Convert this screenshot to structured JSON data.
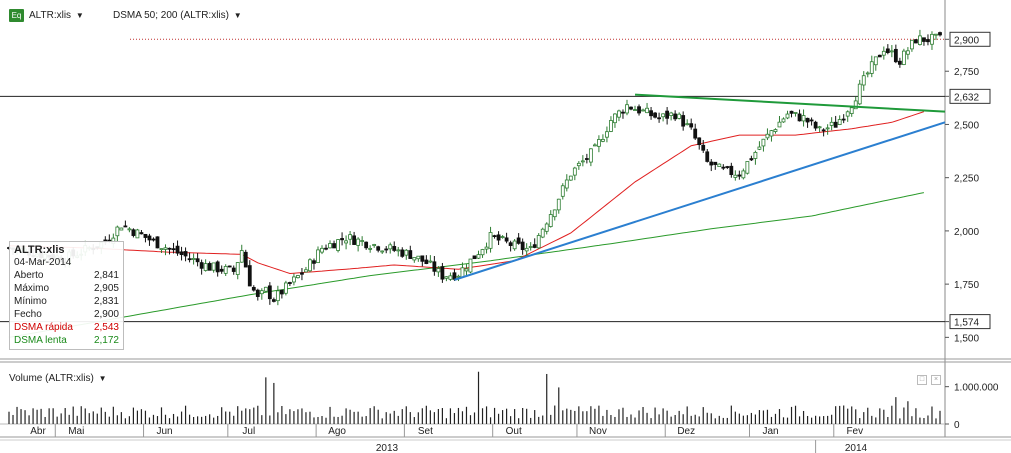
{
  "header": {
    "symbol": "ALTR:xlis",
    "indicator": "DSMA 50; 200 (ALTR:xlis)",
    "eq_label": "Eq",
    "dropdown_icon": "triangle-down-icon"
  },
  "legend": {
    "symbol": "ALTR:xlis",
    "date": "04-Mar-2014",
    "rows": [
      {
        "label": "Aberto",
        "value": "2,841"
      },
      {
        "label": "Máximo",
        "value": "2,905"
      },
      {
        "label": "Mínimo",
        "value": "2,831"
      },
      {
        "label": "Fecho",
        "value": "2,900"
      },
      {
        "label": "DSMA rápida",
        "value": "2,543"
      },
      {
        "label": "DSMA lenta",
        "value": "2,172"
      }
    ]
  },
  "volume": {
    "title": "Volume (ALTR:xlis)",
    "tick_labels": [
      "1.000.000",
      "0"
    ]
  },
  "colors": {
    "up": "#2e7d32",
    "down": "#111111",
    "fast_ma": "#e02020",
    "slow_ma": "#2a9a2a",
    "resistance": "#1f9a3a",
    "support": "#2b7fd0",
    "hline": "#222222"
  },
  "chart_data": {
    "type": "candlestick",
    "y_ticks": [
      "2,900",
      "2,750",
      "2,632",
      "2,500",
      "2,250",
      "2,000",
      "1,750",
      "1,574",
      "1,500"
    ],
    "y_tick_values": [
      2.9,
      2.75,
      2.632,
      2.5,
      2.25,
      2.0,
      1.75,
      1.574,
      1.5
    ],
    "y_highlighted": [
      "2,900",
      "2,632",
      "1,574"
    ],
    "ylim": [
      1.45,
      3.0
    ],
    "x_month_labels": [
      "Abr",
      "Mai",
      "Jun",
      "Jul",
      "Ago",
      "Set",
      "Out",
      "Nov",
      "Dez",
      "Jan",
      "Fev"
    ],
    "x_year_labels": [
      "2013",
      "2014"
    ],
    "horizontal_lines": [
      2.632,
      1.574
    ],
    "keypoints": [
      [
        0,
        1.92
      ],
      [
        14,
        1.87
      ],
      [
        24,
        1.95
      ],
      [
        28,
        2.03
      ],
      [
        36,
        1.95
      ],
      [
        44,
        1.88
      ],
      [
        50,
        1.83
      ],
      [
        56,
        1.81
      ],
      [
        58,
        1.91
      ],
      [
        60,
        1.76
      ],
      [
        62,
        1.68
      ],
      [
        64,
        1.72
      ],
      [
        66,
        1.68
      ],
      [
        70,
        1.75
      ],
      [
        74,
        1.82
      ],
      [
        78,
        1.92
      ],
      [
        84,
        1.97
      ],
      [
        92,
        1.93
      ],
      [
        100,
        1.89
      ],
      [
        104,
        1.85
      ],
      [
        108,
        1.79
      ],
      [
        112,
        1.8
      ],
      [
        116,
        1.88
      ],
      [
        120,
        1.97
      ],
      [
        126,
        1.93
      ],
      [
        130,
        1.91
      ],
      [
        136,
        2.12
      ],
      [
        140,
        2.27
      ],
      [
        146,
        2.38
      ],
      [
        150,
        2.52
      ],
      [
        154,
        2.59
      ],
      [
        158,
        2.56
      ],
      [
        162,
        2.53
      ],
      [
        166,
        2.55
      ],
      [
        170,
        2.47
      ],
      [
        174,
        2.32
      ],
      [
        178,
        2.28
      ],
      [
        182,
        2.27
      ],
      [
        186,
        2.37
      ],
      [
        190,
        2.47
      ],
      [
        194,
        2.55
      ],
      [
        198,
        2.53
      ],
      [
        202,
        2.47
      ],
      [
        206,
        2.5
      ],
      [
        210,
        2.6
      ],
      [
        214,
        2.74
      ],
      [
        218,
        2.86
      ],
      [
        222,
        2.8
      ],
      [
        226,
        2.9
      ]
    ],
    "fast_ma": [
      [
        0,
        1.93
      ],
      [
        20,
        1.92
      ],
      [
        40,
        1.9
      ],
      [
        58,
        1.89
      ],
      [
        62,
        1.85
      ],
      [
        70,
        1.8
      ],
      [
        84,
        1.82
      ],
      [
        96,
        1.84
      ],
      [
        112,
        1.82
      ],
      [
        126,
        1.86
      ],
      [
        140,
        1.99
      ],
      [
        156,
        2.23
      ],
      [
        170,
        2.4
      ],
      [
        182,
        2.45
      ],
      [
        196,
        2.45
      ],
      [
        210,
        2.48
      ],
      [
        220,
        2.51
      ],
      [
        228,
        2.56
      ]
    ],
    "slow_ma": [
      [
        0,
        1.5
      ],
      [
        30,
        1.6
      ],
      [
        60,
        1.7
      ],
      [
        90,
        1.79
      ],
      [
        120,
        1.86
      ],
      [
        150,
        1.94
      ],
      [
        175,
        2.01
      ],
      [
        200,
        2.07
      ],
      [
        228,
        2.18
      ]
    ],
    "resistance_line": [
      [
        156,
        2.64
      ],
      [
        232,
        2.56
      ]
    ],
    "support_line": [
      [
        111,
        1.77
      ],
      [
        232,
        2.51
      ]
    ],
    "volume_ylim": [
      0,
      1500000
    ],
    "volume_spikes": [
      [
        64,
        1250000
      ],
      [
        66,
        1100000
      ],
      [
        117,
        1400000
      ],
      [
        134,
        1340000
      ],
      [
        137,
        980000
      ],
      [
        221,
        720000
      ],
      [
        224,
        610000
      ]
    ]
  }
}
